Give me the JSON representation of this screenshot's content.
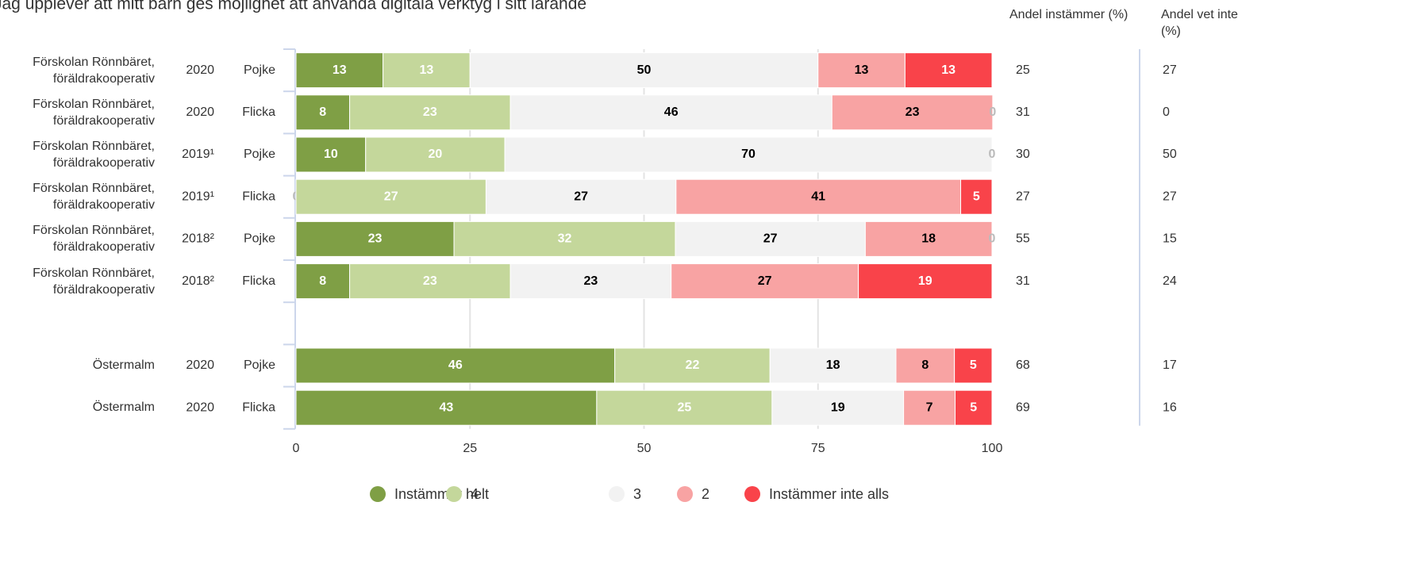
{
  "chart_data": {
    "type": "stacked-bar-horizontal",
    "title": "Jag upplever att mitt barn ges möjlighet att använda digitala verktyg i sitt lärande",
    "categories": [
      "Förskolan Rönnbäret, föräldrakooperativ",
      "Förskolan Rönnbäret, föräldrakooperativ",
      "Förskolan Rönnbäret, föräldrakooperativ",
      "Förskolan Rönnbäret, föräldrakooperativ",
      "Förskolan Rönnbäret, föräldrakooperativ",
      "Förskolan Rönnbäret, föräldrakooperativ",
      null,
      "Östermalm",
      "Östermalm"
    ],
    "years": [
      "2020",
      "2020",
      "2019¹",
      "2019¹",
      "2018²",
      "2018²",
      null,
      "2020",
      "2020"
    ],
    "genders": [
      "Pojke",
      "Flicka",
      "Pojke",
      "Flicka",
      "Pojke",
      "Flicka",
      null,
      "Pojke",
      "Flicka"
    ],
    "series": [
      {
        "name": "Instämmer helt",
        "color": "#7f9f45",
        "label_color": "#ffffff",
        "values": [
          12.5,
          7.7,
          10,
          0,
          22.7,
          7.7,
          null,
          45.8,
          43.2
        ],
        "value_labels": [
          "13",
          "8",
          "10",
          "0",
          "23",
          "8",
          null,
          "46",
          "43"
        ]
      },
      {
        "name": "4",
        "color": "#c4d79b",
        "label_color": "#ffffff",
        "values": [
          12.5,
          23.1,
          20,
          27.3,
          31.8,
          23.1,
          null,
          22.3,
          25.2
        ],
        "value_labels": [
          "13",
          "23",
          "20",
          "27",
          "32",
          "23",
          null,
          "22",
          "25"
        ]
      },
      {
        "name": "3",
        "color": "#f2f2f2",
        "label_color": "#000000",
        "values": [
          50,
          46.2,
          70,
          27.3,
          27.3,
          23.1,
          null,
          18.1,
          18.9
        ],
        "value_labels": [
          "50",
          "46",
          "70",
          "27",
          "27",
          "23",
          null,
          "18",
          "19"
        ]
      },
      {
        "name": "2",
        "color": "#f8a3a3",
        "label_color": "#000000",
        "values": [
          12.5,
          23.1,
          0,
          40.9,
          18.2,
          26.9,
          null,
          8.4,
          7.4
        ],
        "value_labels": [
          "13",
          "23",
          null,
          "41",
          "18",
          "27",
          null,
          "8",
          "7"
        ]
      },
      {
        "name": "Instämmer inte alls",
        "color": "#f9434a",
        "label_color": "#ffffff",
        "values": [
          12.5,
          0,
          0,
          4.5,
          0,
          19.2,
          null,
          5.4,
          5.3
        ],
        "value_labels": [
          "13",
          "0",
          "0",
          "5",
          "0",
          "19",
          null,
          "5",
          "5"
        ]
      }
    ],
    "xlim": [
      0,
      100
    ],
    "xticks": [
      0,
      25,
      50,
      75,
      100
    ],
    "grid": true,
    "legend": "bottom",
    "columns": [
      {
        "header": "Andel instämmer (%)",
        "values": [
          25,
          31,
          30,
          27,
          55,
          31,
          null,
          68,
          69
        ]
      },
      {
        "header": "Andel vet inte (%)",
        "values": [
          27,
          0,
          50,
          27,
          15,
          24,
          null,
          17,
          16
        ]
      }
    ]
  }
}
